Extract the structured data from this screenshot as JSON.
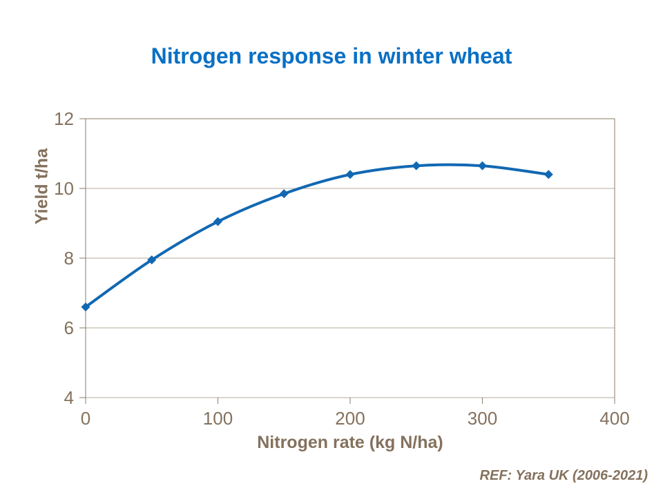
{
  "page": {
    "background_color": "#ffffff"
  },
  "footer": {
    "ref": "REF: Yara UK (2006-2021)"
  },
  "chart_data": {
    "type": "line",
    "title": "Nitrogen response in winter wheat",
    "xlabel": "Nitrogen rate (kg N/ha)",
    "ylabel": "Yield t/ha",
    "x": [
      0,
      50,
      100,
      150,
      200,
      250,
      300,
      350
    ],
    "series": [
      {
        "name": "Yield",
        "values": [
          6.6,
          7.95,
          9.05,
          9.85,
          10.4,
          10.65,
          10.65,
          10.4
        ]
      }
    ],
    "xlim": [
      0,
      400
    ],
    "ylim": [
      4,
      12
    ],
    "xticks": [
      0,
      100,
      200,
      300,
      400
    ],
    "yticks": [
      4,
      6,
      8,
      10,
      12
    ],
    "grid": "horizontal-only",
    "legend": "none",
    "marker": "diamond",
    "smooth": true,
    "colors": {
      "title": "#0a70c4",
      "line": "#1168b2",
      "marker": "#1168b2",
      "axis": "#8a7b69",
      "gridline": "#b5ab9c",
      "tick_label": "#84715d",
      "axis_title": "#84715d"
    }
  }
}
